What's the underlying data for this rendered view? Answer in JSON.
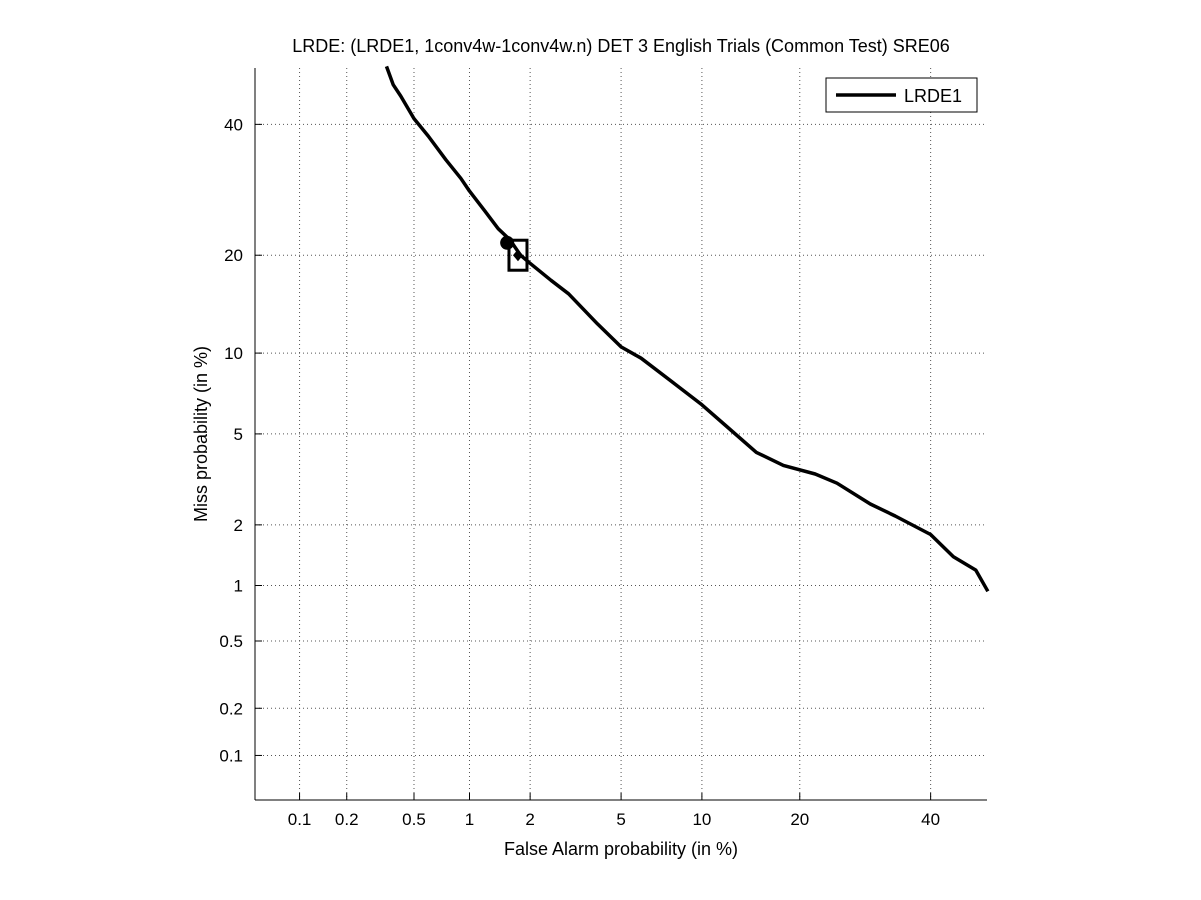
{
  "chart_data": {
    "type": "line",
    "title": "LRDE: (LRDE1, 1conv4w-1conv4w.n) DET 3 English Trials (Common Test) SRE06",
    "xlabel": "False Alarm probability (in %)",
    "ylabel": "Miss probability (in %)",
    "x_scale": "normal-deviate",
    "y_scale": "normal-deviate",
    "xlim": [
      0.05,
      50
    ],
    "ylim": [
      0.05,
      50
    ],
    "grid": true,
    "legend": {
      "location": "top-right",
      "entries": [
        "LRDE1"
      ]
    },
    "x_ticks": [
      {
        "value": 0.1,
        "label": "0.1"
      },
      {
        "value": 0.2,
        "label": "0.2"
      },
      {
        "value": 0.5,
        "label": "0.5"
      },
      {
        "value": 1,
        "label": "1"
      },
      {
        "value": 2,
        "label": "2"
      },
      {
        "value": 5,
        "label": "5"
      },
      {
        "value": 10,
        "label": "10"
      },
      {
        "value": 20,
        "label": "20"
      },
      {
        "value": 40,
        "label": "40"
      }
    ],
    "y_ticks": [
      {
        "value": 0.1,
        "label": "0.1"
      },
      {
        "value": 0.2,
        "label": "0.2"
      },
      {
        "value": 0.5,
        "label": "0.5"
      },
      {
        "value": 1,
        "label": "1"
      },
      {
        "value": 2,
        "label": "2"
      },
      {
        "value": 5,
        "label": "5"
      },
      {
        "value": 10,
        "label": "10"
      },
      {
        "value": 20,
        "label": "20"
      },
      {
        "value": 40,
        "label": "40"
      }
    ],
    "series": [
      {
        "name": "LRDE1",
        "color": "#000000",
        "points": [
          [
            0.35,
            50
          ],
          [
            0.38,
            47
          ],
          [
            0.42,
            45
          ],
          [
            0.5,
            41
          ],
          [
            0.6,
            38
          ],
          [
            0.75,
            34
          ],
          [
            0.9,
            31
          ],
          [
            1.0,
            29
          ],
          [
            1.2,
            26
          ],
          [
            1.4,
            23.5
          ],
          [
            1.6,
            22
          ],
          [
            1.8,
            20
          ],
          [
            2.0,
            19
          ],
          [
            2.5,
            17
          ],
          [
            3.0,
            15.5
          ],
          [
            4.0,
            12.5
          ],
          [
            5.0,
            10.5
          ],
          [
            6.0,
            9.6
          ],
          [
            8.0,
            7.8
          ],
          [
            10.0,
            6.5
          ],
          [
            12.0,
            5.4
          ],
          [
            15.0,
            4.2
          ],
          [
            18.0,
            3.7
          ],
          [
            22.0,
            3.4
          ],
          [
            25.0,
            3.1
          ],
          [
            30.0,
            2.5
          ],
          [
            34.0,
            2.2
          ],
          [
            40.0,
            1.8
          ],
          [
            44.0,
            1.4
          ],
          [
            48.0,
            1.2
          ],
          [
            50.0,
            0.95
          ]
        ]
      }
    ],
    "markers": [
      {
        "shape": "circle",
        "x": 1.55,
        "y": 21.6
      },
      {
        "shape": "square",
        "x": 1.75,
        "y": 20.0
      },
      {
        "shape": "diamond",
        "x": 1.75,
        "y": 20.0
      }
    ]
  }
}
